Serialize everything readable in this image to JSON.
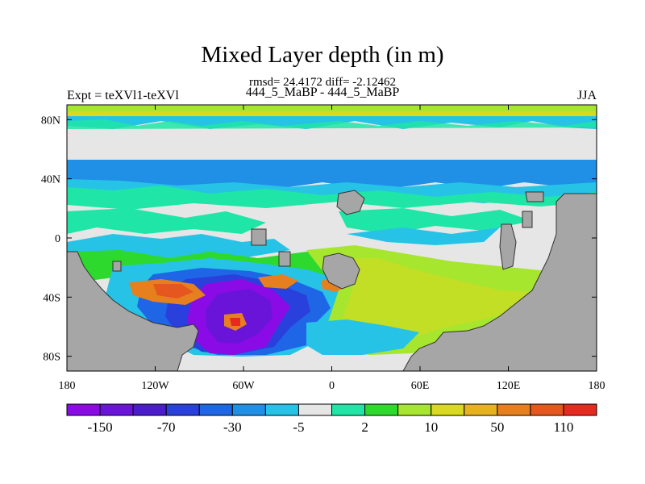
{
  "chart_data": {
    "type": "heatmap",
    "title": "Mixed Layer depth (in m)",
    "stats_text": "rmsd= 24.4172 diff= -2.12462",
    "subtitle": "444_5_MaBP - 444_5_MaBP",
    "left_label": "Expt = teXVl1-teXVl",
    "right_label": "JJA",
    "x_range": [
      -180,
      180
    ],
    "y_range": [
      -90,
      90
    ],
    "x_tick_labels": [
      "180",
      "120W",
      "60W",
      "0",
      "60E",
      "120E",
      "180"
    ],
    "y_tick_labels": [
      "80N",
      "40N",
      "0",
      "40S",
      "80S"
    ],
    "colorbar": {
      "colors": [
        "#8a0be6",
        "#6a14d9",
        "#4a1ccc",
        "#2a40dd",
        "#1f66e6",
        "#1f90e6",
        "#26c3e6",
        "#e6e6e6",
        "#1fe6a6",
        "#2ed92e",
        "#a6e62e",
        "#d9d91f",
        "#e6b31f",
        "#e6801f",
        "#e6561f",
        "#e62a1f"
      ],
      "labels": [
        "-150",
        "-70",
        "-30",
        "-5",
        "2",
        "10",
        "50",
        "110"
      ],
      "land_color": "#a6a6a6"
    },
    "regions": [
      {
        "name": "arctic-shelf",
        "value_class": "10 to 50",
        "color": "#a6e62e"
      },
      {
        "name": "northern-ocean",
        "value_class": "-5 to 2",
        "color": "#e6e6e6"
      },
      {
        "name": "northern-band",
        "value_class": "-30 to -5",
        "color": "#1f90e6"
      },
      {
        "name": "tropical-band",
        "value_class": "2 to 10",
        "color": "#2ed92e"
      },
      {
        "name": "southern-deepening",
        "value_class": "-150 and below",
        "color": "#8a0be6"
      },
      {
        "name": "southern-shoaling",
        "value_class": "10 to 50",
        "color": "#a6e62e"
      },
      {
        "name": "southern-hotspot",
        "value_class": "110 and above",
        "color": "#e62a1f"
      }
    ]
  }
}
